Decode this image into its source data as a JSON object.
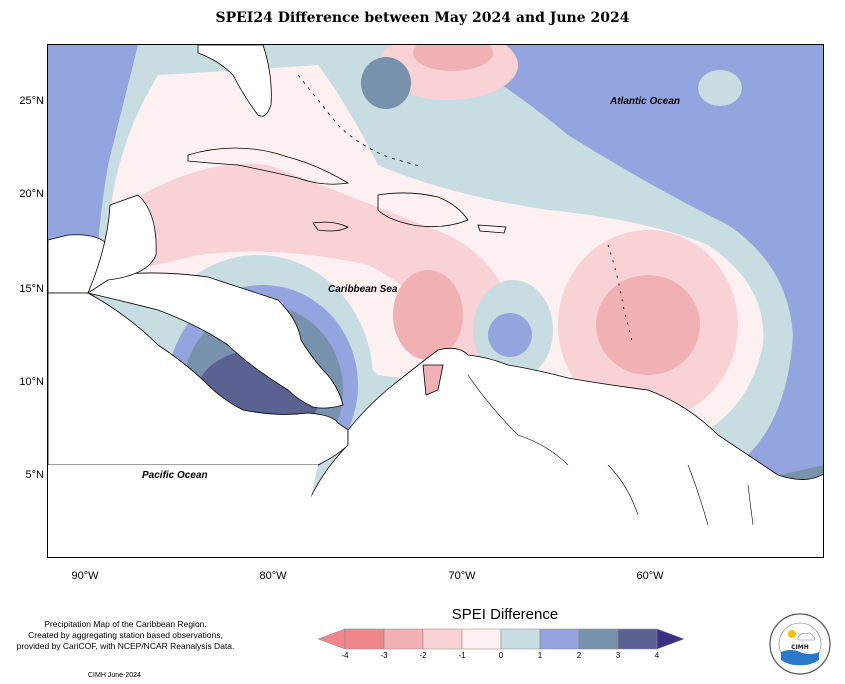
{
  "title": "SPEI24 Difference between May 2024 and June 2024",
  "axes": {
    "lat_ticks": [
      "25°N",
      "20°N",
      "15°N",
      "10°N",
      "5°N"
    ],
    "lon_ticks": [
      "90°W",
      "80°W",
      "70°W",
      "60°W"
    ]
  },
  "labels": {
    "atlantic": "Atlantic Ocean",
    "caribbean": "Caribbean Sea",
    "pacific": "Pacific Ocean"
  },
  "legend": {
    "title": "SPEI Difference",
    "ticks": [
      "-4",
      "-3",
      "-2",
      "-1",
      "0",
      "1",
      "2",
      "3",
      "4"
    ],
    "colors": [
      "#f1868c",
      "#f0b0b4",
      "#f9d2d6",
      "#fdf0f0",
      "#c8dde2",
      "#93a4df",
      "#7891ad",
      "#5a6291"
    ],
    "low_arrow_color": "#f1868c",
    "high_arrow_color": "#3a2f80"
  },
  "credits": {
    "line1": "Precipitation Map of the Caribbean Region.",
    "line2": "Created by aggregating station based observations,",
    "line3": "provided by CariCOF, with NCEP/NCAR Reanalysis Data."
  },
  "footer": "CIMH June-2024",
  "logo": {
    "top_text": "CARIBBEAN INSTITUTE FOR",
    "bottom_text": "METEOROLOGY AND HYDROLOGY",
    "center_text": "CIMH"
  }
}
